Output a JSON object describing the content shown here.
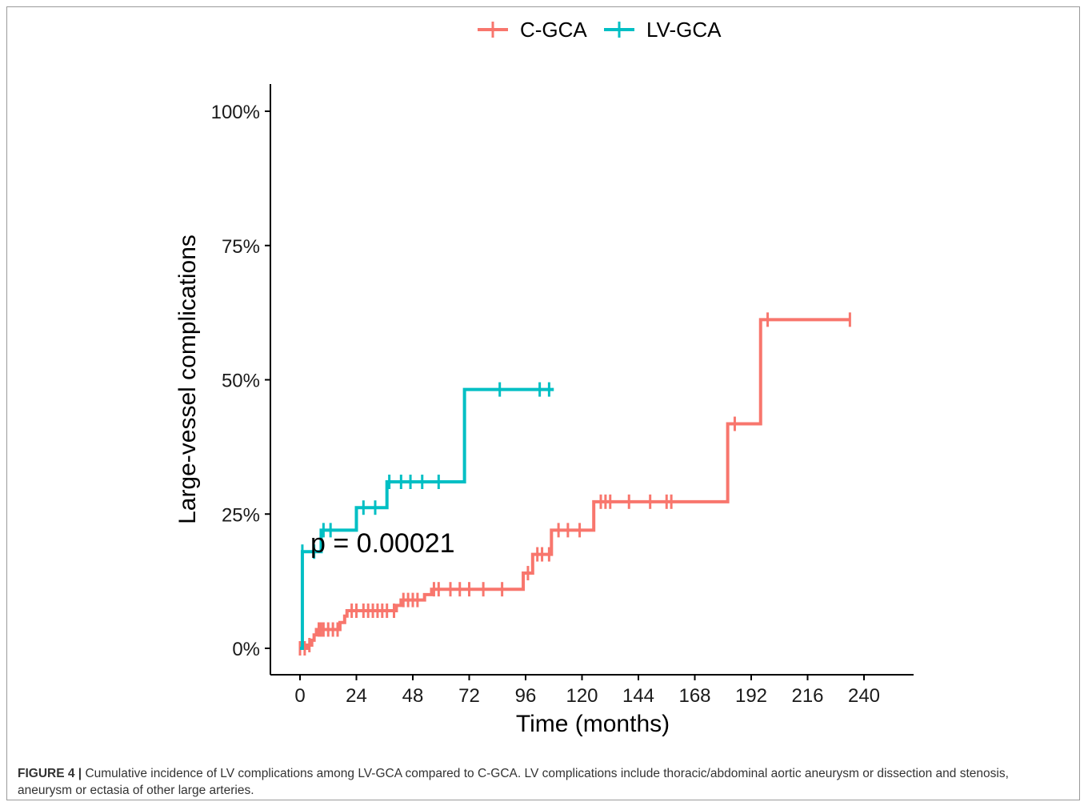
{
  "caption": {
    "label": "FIGURE 4 |",
    "text": " Cumulative incidence of LV complications among LV-GCA compared to C-GCA. LV complications include thoracic/abdominal aortic aneurysm or dissection and stenosis, aneurysm or ectasia of other large arteries."
  },
  "chart_data": {
    "type": "line",
    "subtype": "kaplan-meier step curves (cumulative incidence)",
    "xlabel": "Time (months)",
    "ylabel": "Large-vessel complications",
    "xlim": [
      -12,
      264
    ],
    "ylim": [
      -5,
      105
    ],
    "x_ticks": [
      0,
      24,
      48,
      72,
      96,
      120,
      144,
      168,
      192,
      216,
      240
    ],
    "x_tick_labels": [
      "0",
      "24",
      "48",
      "72",
      "96",
      "120",
      "144",
      "168",
      "192",
      "216",
      "240"
    ],
    "y_ticks": [
      0,
      25,
      50,
      75,
      100
    ],
    "y_tick_labels": [
      "0%",
      "25%",
      "50%",
      "75%",
      "100%"
    ],
    "legend": {
      "position": "top",
      "entries": [
        "C-GCA",
        "LV-GCA"
      ]
    },
    "annotation": "p = 0.00021",
    "series": [
      {
        "name": "C-GCA",
        "color": "#F8766D",
        "steps": [
          [
            0,
            0
          ],
          [
            3,
            0.6
          ],
          [
            5,
            1.5
          ],
          [
            6,
            2.5
          ],
          [
            7,
            3.5
          ],
          [
            17,
            4.8
          ],
          [
            19,
            6
          ],
          [
            20,
            7
          ],
          [
            41,
            8
          ],
          [
            43,
            9
          ],
          [
            53,
            10
          ],
          [
            56,
            11
          ],
          [
            95,
            14
          ],
          [
            99,
            17.5
          ],
          [
            107,
            22
          ],
          [
            125,
            27.3
          ],
          [
            182,
            41.8
          ],
          [
            196,
            61.2
          ],
          [
            234,
            61.2
          ]
        ],
        "censor": [
          0,
          2,
          4,
          8,
          9,
          10,
          12,
          14,
          16,
          22,
          24,
          27,
          29,
          31,
          33,
          35,
          37,
          40,
          44,
          46,
          48,
          50,
          57,
          59,
          64,
          68,
          72,
          78,
          86,
          97,
          101,
          103,
          106,
          110,
          114,
          119,
          128,
          130,
          132,
          140,
          149,
          156,
          158,
          185,
          199,
          234
        ]
      },
      {
        "name": "LV-GCA",
        "color": "#00BFC4",
        "steps": [
          [
            0,
            0
          ],
          [
            1,
            18
          ],
          [
            9,
            22
          ],
          [
            24,
            26.2
          ],
          [
            37,
            31
          ],
          [
            70,
            48.2
          ],
          [
            108,
            48.2
          ]
        ],
        "censor": [
          1,
          6,
          10,
          13,
          27,
          32,
          38,
          43,
          47,
          52,
          59,
          85,
          102,
          106
        ]
      }
    ]
  }
}
